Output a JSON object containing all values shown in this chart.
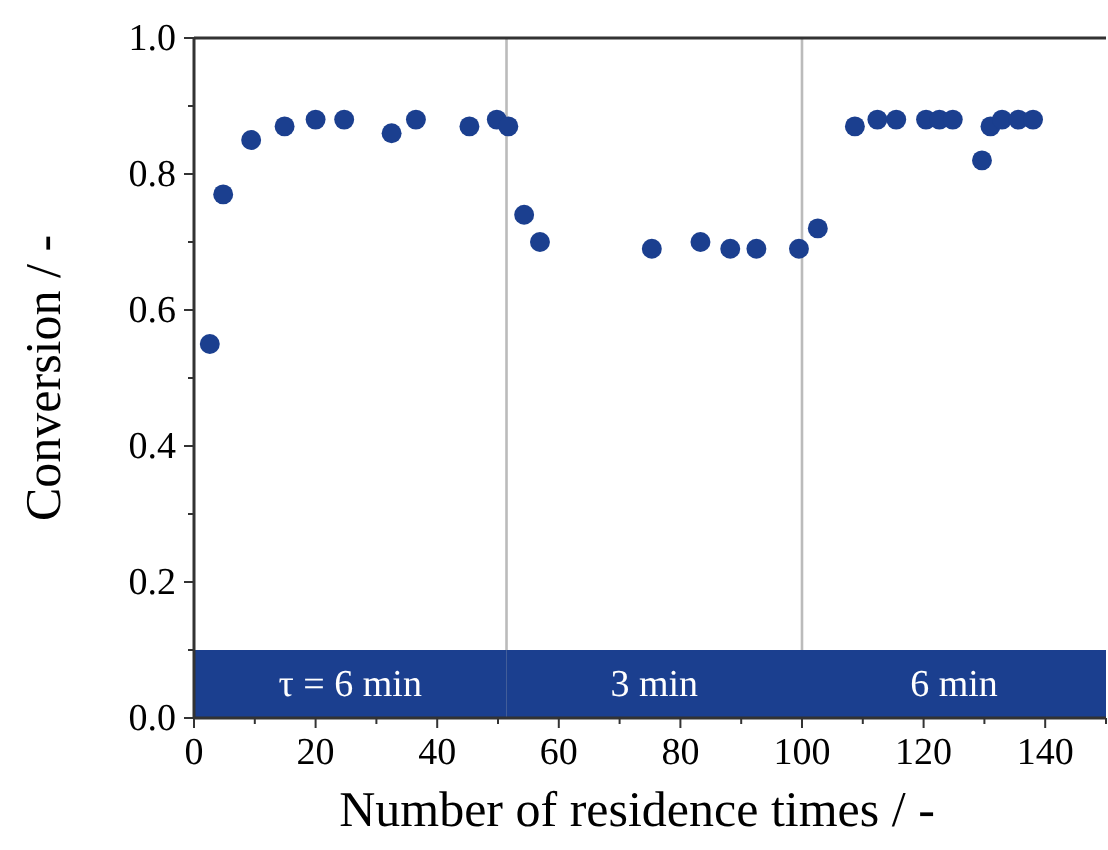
{
  "chart_data": {
    "type": "scatter",
    "xlabel": "Number of residence times / -",
    "ylabel": "Conversion / -",
    "x": [
      2.6,
      4.8,
      9.4,
      14.9,
      20.0,
      24.7,
      32.5,
      36.5,
      45.3,
      49.8,
      51.7,
      54.3,
      56.9,
      75.3,
      83.3,
      88.2,
      92.5,
      99.5,
      102.6,
      108.7,
      112.4,
      115.5,
      120.4,
      122.6,
      124.8,
      129.6,
      131.0,
      132.9,
      135.6,
      138.0
    ],
    "series": [
      {
        "color": "#1b3f8f",
        "values": [
          0.55,
          0.77,
          0.85,
          0.87,
          0.88,
          0.88,
          0.86,
          0.88,
          0.87,
          0.88,
          0.87,
          0.74,
          0.7,
          0.69,
          0.7,
          0.69,
          0.69,
          0.69,
          0.72,
          0.87,
          0.88,
          0.88,
          0.88,
          0.88,
          0.88,
          0.82,
          0.87,
          0.88,
          0.88,
          0.88
        ]
      }
    ],
    "marker": "circle",
    "grid": false,
    "xlim": [
      0,
      150
    ],
    "xticks": [
      0,
      {
        "value": 10,
        "label": null
      },
      20,
      {
        "value": 30,
        "label": null
      },
      40,
      {
        "value": 50,
        "label": null
      },
      60,
      {
        "value": 70,
        "label": null
      },
      80,
      {
        "value": 90,
        "label": null
      },
      100,
      {
        "value": 110,
        "label": null
      },
      120,
      {
        "value": 130,
        "label": null
      },
      140,
      {
        "value": 150,
        "label": null
      }
    ],
    "ylim": [
      0,
      1
    ],
    "yticks": [
      {
        "value": 0,
        "label": "0.0"
      },
      {
        "value": 0.1,
        "label": null
      },
      {
        "value": 0.2,
        "label": "0.2"
      },
      {
        "value": 0.3,
        "label": null
      },
      {
        "value": 0.4,
        "label": "0.4"
      },
      {
        "value": 0.5,
        "label": null
      },
      {
        "value": 0.6,
        "label": "0.6"
      },
      {
        "value": 0.7,
        "label": null
      },
      {
        "value": 0.8,
        "label": "0.8"
      },
      {
        "value": 0.9,
        "label": null
      },
      {
        "value": 1,
        "label": "1.0"
      }
    ],
    "ref_lines": [
      {
        "axis": "x",
        "value": 51.4,
        "color": "#bbbbbb"
      },
      {
        "axis": "x",
        "value": 100,
        "color": "#bbbbbb"
      }
    ],
    "bands": [
      {
        "axis": "x",
        "from": 0,
        "to": 51.4,
        "label": "τ = 6 min",
        "color": "#1b3f8f"
      },
      {
        "axis": "x",
        "from": 51.4,
        "to": 100,
        "label": "3 min",
        "color": "#1b3f8f"
      },
      {
        "axis": "x",
        "from": 100,
        "to": 150,
        "label": "6 min",
        "color": "#1b3f8f"
      }
    ]
  }
}
